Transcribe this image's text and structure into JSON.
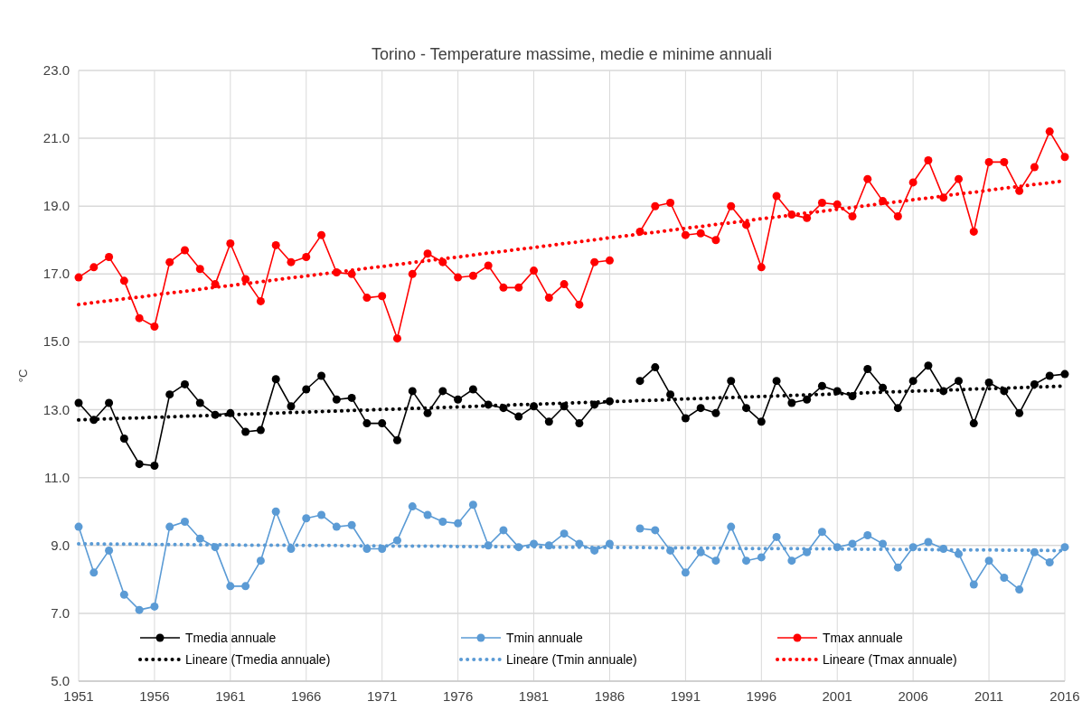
{
  "chart_data": {
    "type": "line",
    "title": "Torino - Temperature massime, medie e minime annuali",
    "ylabel": "°C",
    "x": [
      1951,
      1952,
      1953,
      1954,
      1955,
      1956,
      1957,
      1958,
      1959,
      1960,
      1961,
      1962,
      1963,
      1964,
      1965,
      1966,
      1967,
      1968,
      1969,
      1970,
      1971,
      1972,
      1973,
      1974,
      1975,
      1976,
      1977,
      1978,
      1979,
      1980,
      1981,
      1982,
      1983,
      1984,
      1985,
      1986,
      1987,
      1988,
      1989,
      1990,
      1991,
      1992,
      1993,
      1994,
      1995,
      1996,
      1997,
      1998,
      1999,
      2000,
      2001,
      2002,
      2003,
      2004,
      2005,
      2006,
      2007,
      2008,
      2009,
      2010,
      2011,
      2012,
      2013,
      2014,
      2015,
      2016
    ],
    "series": [
      {
        "name": "Tmedia annuale",
        "color": "#000000",
        "marker": "circle",
        "line_style": "solid",
        "values": [
          13.2,
          12.7,
          13.2,
          12.15,
          11.4,
          11.35,
          13.45,
          13.75,
          13.2,
          12.85,
          12.9,
          12.35,
          12.4,
          13.9,
          13.1,
          13.6,
          14.0,
          13.3,
          13.35,
          12.6,
          12.6,
          12.1,
          13.55,
          12.9,
          13.55,
          13.3,
          13.6,
          13.15,
          13.05,
          12.8,
          13.1,
          12.65,
          13.1,
          12.6,
          13.15,
          13.25,
          null,
          13.85,
          14.25,
          13.45,
          12.75,
          13.05,
          12.9,
          13.85,
          13.05,
          12.65,
          13.85,
          13.2,
          13.3,
          13.7,
          13.55,
          13.4,
          14.2,
          13.65,
          13.05,
          13.85,
          14.3,
          13.55,
          13.85,
          12.6,
          13.8,
          13.55,
          12.9,
          13.75,
          14.0,
          14.05
        ]
      },
      {
        "name": "Tmin annuale",
        "color": "#5b9bd5",
        "marker": "circle",
        "line_style": "solid",
        "values": [
          9.55,
          8.2,
          8.85,
          7.55,
          7.1,
          7.2,
          9.55,
          9.7,
          9.2,
          8.95,
          7.8,
          7.8,
          8.55,
          10.0,
          8.9,
          9.8,
          9.9,
          9.55,
          9.6,
          8.9,
          8.9,
          9.15,
          10.15,
          9.9,
          9.7,
          9.65,
          10.2,
          9.0,
          9.45,
          8.95,
          9.05,
          9.0,
          9.35,
          9.05,
          8.85,
          9.05,
          null,
          9.5,
          9.45,
          8.85,
          8.2,
          8.8,
          8.55,
          9.55,
          8.55,
          8.65,
          9.25,
          8.55,
          8.8,
          9.4,
          8.95,
          9.05,
          9.3,
          9.05,
          8.35,
          8.95,
          9.1,
          8.9,
          8.75,
          7.85,
          8.55,
          8.05,
          7.7,
          8.8,
          8.5,
          8.95
        ]
      },
      {
        "name": "Tmax annuale",
        "color": "#ff0000",
        "marker": "circle",
        "line_style": "solid",
        "values": [
          16.9,
          17.2,
          17.5,
          16.8,
          15.7,
          15.45,
          17.35,
          17.7,
          17.15,
          16.7,
          17.9,
          16.85,
          16.2,
          17.85,
          17.35,
          17.5,
          18.15,
          17.05,
          17.0,
          16.3,
          16.35,
          15.1,
          17.0,
          17.6,
          17.35,
          16.9,
          16.95,
          17.25,
          16.6,
          16.6,
          17.1,
          16.3,
          16.7,
          16.1,
          17.35,
          17.4,
          null,
          18.25,
          19.0,
          19.1,
          18.15,
          18.2,
          18.0,
          19.0,
          18.45,
          17.2,
          19.3,
          18.75,
          18.65,
          19.1,
          19.05,
          18.7,
          19.8,
          19.15,
          18.7,
          19.7,
          20.35,
          19.25,
          19.8,
          18.25,
          20.3,
          20.3,
          19.45,
          20.15,
          21.2,
          20.45
        ]
      },
      {
        "name": "Lineare (Tmedia annuale)",
        "color": "#000000",
        "marker": "none",
        "line_style": "dotted",
        "values": [
          12.7,
          12.72,
          12.73,
          12.75,
          12.76,
          12.78,
          12.79,
          12.81,
          12.82,
          12.84,
          12.85,
          12.87,
          12.88,
          12.9,
          12.92,
          12.93,
          12.95,
          12.96,
          12.98,
          12.99,
          13.01,
          13.02,
          13.04,
          13.05,
          13.07,
          13.08,
          13.1,
          13.12,
          13.13,
          13.15,
          13.16,
          13.18,
          13.19,
          13.21,
          13.22,
          13.24,
          13.25,
          13.27,
          13.28,
          13.3,
          13.32,
          13.33,
          13.35,
          13.36,
          13.38,
          13.39,
          13.41,
          13.42,
          13.44,
          13.45,
          13.47,
          13.48,
          13.5,
          13.52,
          13.53,
          13.55,
          13.56,
          13.58,
          13.59,
          13.61,
          13.62,
          13.64,
          13.65,
          13.67,
          13.68,
          13.7
        ]
      },
      {
        "name": "Lineare (Tmin annuale)",
        "color": "#5b9bd5",
        "marker": "none",
        "line_style": "dotted",
        "values": [
          9.05,
          9.05,
          9.04,
          9.04,
          9.04,
          9.03,
          9.03,
          9.03,
          9.02,
          9.02,
          9.02,
          9.01,
          9.01,
          9.01,
          9.01,
          9.0,
          9.0,
          9.0,
          8.99,
          8.99,
          8.99,
          8.98,
          8.98,
          8.98,
          8.98,
          8.97,
          8.97,
          8.97,
          8.96,
          8.96,
          8.96,
          8.95,
          8.95,
          8.95,
          8.94,
          8.94,
          8.94,
          8.94,
          8.93,
          8.93,
          8.93,
          8.92,
          8.92,
          8.92,
          8.91,
          8.91,
          8.91,
          8.91,
          8.9,
          8.9,
          8.9,
          8.89,
          8.89,
          8.89,
          8.88,
          8.88,
          8.88,
          8.87,
          8.87,
          8.87,
          8.87,
          8.86,
          8.86,
          8.86,
          8.85,
          8.85
        ]
      },
      {
        "name": "Lineare (Tmax annuale)",
        "color": "#ff0000",
        "marker": "none",
        "line_style": "dotted",
        "values": [
          16.1,
          16.16,
          16.21,
          16.27,
          16.32,
          16.38,
          16.44,
          16.49,
          16.55,
          16.61,
          16.66,
          16.72,
          16.77,
          16.83,
          16.89,
          16.94,
          17.0,
          17.05,
          17.11,
          17.17,
          17.22,
          17.28,
          17.34,
          17.39,
          17.45,
          17.5,
          17.56,
          17.62,
          17.67,
          17.73,
          17.78,
          17.84,
          17.9,
          17.95,
          18.01,
          18.07,
          18.12,
          18.18,
          18.23,
          18.29,
          18.35,
          18.4,
          18.46,
          18.51,
          18.57,
          18.63,
          18.68,
          18.74,
          18.8,
          18.85,
          18.91,
          18.96,
          19.02,
          19.08,
          19.13,
          19.19,
          19.24,
          19.3,
          19.36,
          19.41,
          19.47,
          19.53,
          19.58,
          19.64,
          19.69,
          19.75
        ]
      }
    ],
    "xlim": [
      1951,
      2016
    ],
    "xticks": [
      1951,
      1956,
      1961,
      1966,
      1971,
      1976,
      1981,
      1986,
      1991,
      1996,
      2001,
      2006,
      2011,
      2016
    ],
    "ylim": [
      5,
      23
    ],
    "yticks": [
      {
        "value": 5,
        "label": "5.0"
      },
      {
        "value": 7,
        "label": "7.0"
      },
      {
        "value": 9,
        "label": "9.0"
      },
      {
        "value": 11,
        "label": "11.0"
      },
      {
        "value": 13,
        "label": "13.0"
      },
      {
        "value": 15,
        "label": "15.0"
      },
      {
        "value": 17,
        "label": "17.0"
      },
      {
        "value": 19,
        "label": "19.0"
      },
      {
        "value": 21,
        "label": "21.0"
      },
      {
        "value": 23,
        "label": "23.0"
      }
    ],
    "grid": true,
    "legend": "bottom"
  }
}
